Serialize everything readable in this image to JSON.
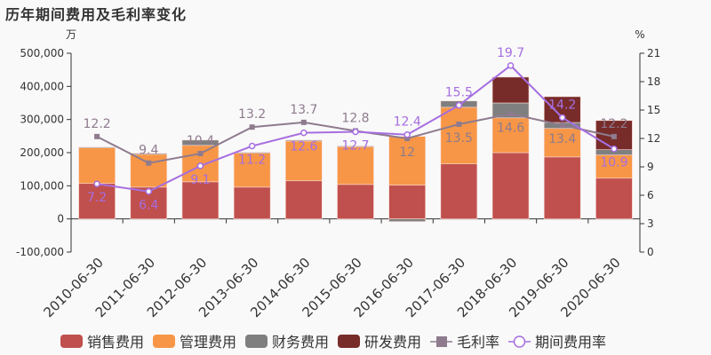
{
  "title": "历年期间费用及毛利率变化",
  "chart_data": {
    "type": "bar",
    "stacked": true,
    "title": "历年期间费用及毛利率变化",
    "left_unit": "万",
    "right_unit": "%",
    "categories": [
      "2010-06-30",
      "2011-06-30",
      "2012-06-30",
      "2013-06-30",
      "2014-06-30",
      "2015-06-30",
      "2016-06-30",
      "2017-06-30",
      "2018-06-30",
      "2019-06-30",
      "2020-06-30"
    ],
    "ylim": [
      -100000,
      500000
    ],
    "yticks": [
      -100000,
      0,
      100000,
      200000,
      300000,
      400000,
      500000
    ],
    "ytick_labels": [
      "-100,000",
      "0",
      "100,000",
      "200,000",
      "300,000",
      "400,000",
      "500,000"
    ],
    "y2lim": [
      0,
      21
    ],
    "y2ticks": [
      0,
      3,
      6,
      9,
      12,
      15,
      18,
      21
    ],
    "series": [
      {
        "name": "销售费用",
        "kind": "bar",
        "color": "#c0504d",
        "values": [
          107000,
          96000,
          112000,
          96000,
          115000,
          104000,
          102000,
          166000,
          200000,
          187000,
          123000
        ]
      },
      {
        "name": "管理费用",
        "kind": "bar",
        "color": "#f79646",
        "values": [
          108000,
          99000,
          110000,
          104000,
          120000,
          115000,
          147000,
          171000,
          105000,
          86000,
          70000
        ]
      },
      {
        "name": "财务费用",
        "kind": "bar",
        "color": "#7f7f7f",
        "values": [
          2000,
          3000,
          16000,
          1000,
          3000,
          1000,
          -8000,
          19000,
          45000,
          18000,
          16000
        ]
      },
      {
        "name": "研发费用",
        "kind": "bar",
        "color": "#772c2a",
        "values": [
          0,
          0,
          0,
          0,
          0,
          0,
          0,
          0,
          78000,
          78000,
          88000
        ]
      },
      {
        "name": "毛利率",
        "kind": "line",
        "axis": "right",
        "color": "#8e7b8e",
        "values": [
          12.2,
          9.4,
          10.4,
          13.2,
          13.7,
          12.8,
          12,
          13.5,
          14.6,
          13.4,
          12.2
        ]
      },
      {
        "name": "期间费用率",
        "kind": "line",
        "axis": "right",
        "color": "#a66ee0",
        "values": [
          7.2,
          6.4,
          9.1,
          11.2,
          12.6,
          12.7,
          12.4,
          15.5,
          19.7,
          14.2,
          10.9
        ]
      }
    ],
    "legend": "bottom",
    "grid": false
  }
}
